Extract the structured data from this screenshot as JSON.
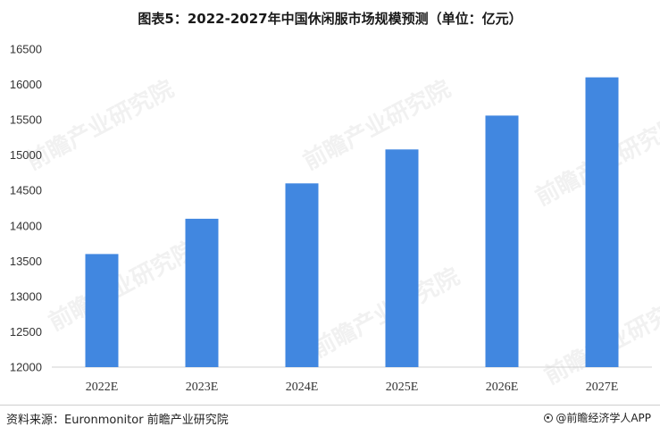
{
  "title": "图表5：2022-2027年中国休闲服市场规模预测（单位：亿元）",
  "chart_data": {
    "type": "bar",
    "title": "图表5：2022-2027年中国休闲服市场规模预测（单位：亿元）",
    "categories": [
      "2022E",
      "2023E",
      "2024E",
      "2025E",
      "2026E",
      "2027E"
    ],
    "values": [
      13600,
      14100,
      14600,
      15080,
      15560,
      16100
    ],
    "ylim": [
      12000,
      16500
    ],
    "yticks": [
      12000,
      12500,
      13000,
      13500,
      14000,
      14500,
      15000,
      15500,
      16000,
      16500
    ],
    "grid": false,
    "bar_color": "#4187E0"
  },
  "footer": {
    "source": "资料来源：Euronmonitor 前瞻产业研究院",
    "brand": "@前瞻经济学人APP"
  },
  "watermark": {
    "text": "前瞻产业研究院"
  }
}
